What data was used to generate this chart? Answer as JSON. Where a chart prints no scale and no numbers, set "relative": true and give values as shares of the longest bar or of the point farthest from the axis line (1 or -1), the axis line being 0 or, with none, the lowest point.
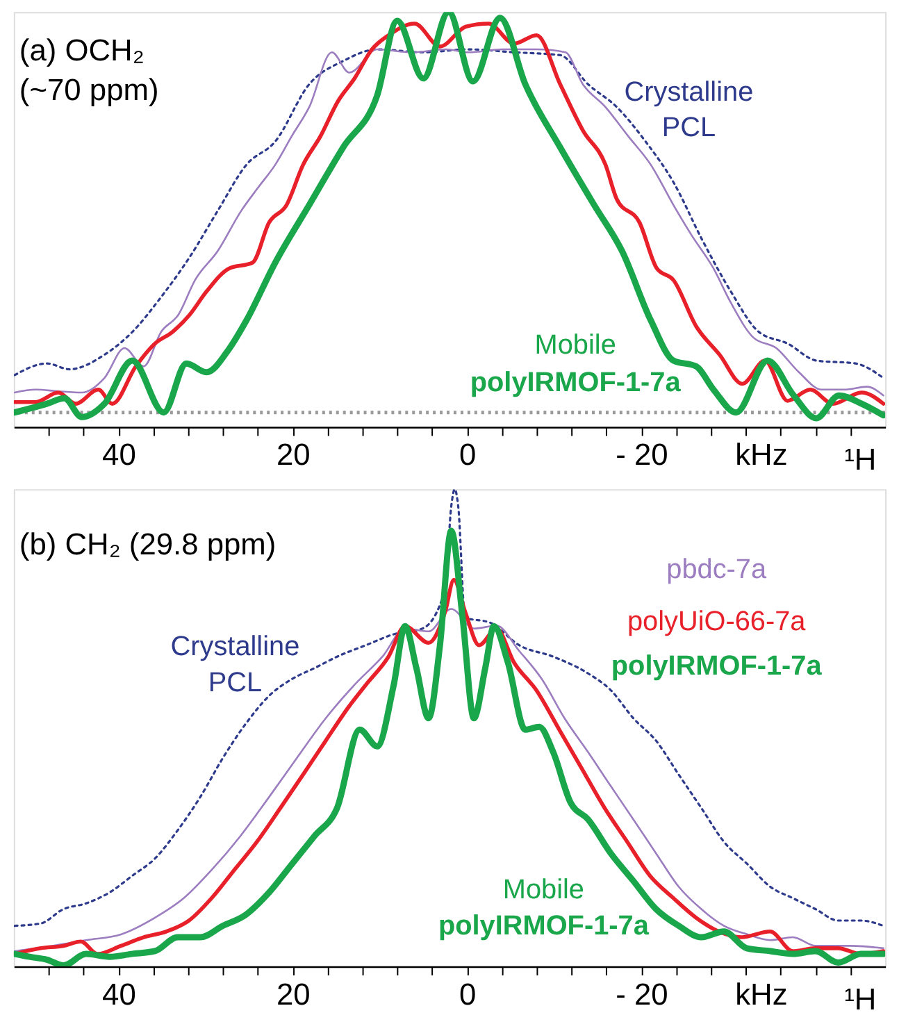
{
  "chart_data": [
    {
      "type": "line",
      "title": "(a)  OCH₂ (~70 ppm)",
      "xlabel": "kHz",
      "relative": true,
      "xlim": [
        52,
        -48
      ],
      "xticks": [
        {
          "value": 48,
          "label": null
        },
        {
          "value": 44,
          "label": null
        },
        40,
        {
          "value": 36,
          "label": null
        },
        {
          "value": 32,
          "label": null
        },
        {
          "value": 28,
          "label": null
        },
        {
          "value": 24,
          "label": null
        },
        20,
        {
          "value": 16,
          "label": null
        },
        {
          "value": 12,
          "label": null
        },
        {
          "value": 8,
          "label": null
        },
        {
          "value": 4,
          "label": null
        },
        0,
        {
          "value": -4,
          "label": null
        },
        {
          "value": -8,
          "label": null
        },
        {
          "value": -12,
          "label": null
        },
        {
          "value": -16,
          "label": null
        },
        {
          "value": -20,
          "label": "- 20"
        },
        {
          "value": -24,
          "label": null
        },
        {
          "value": -28,
          "label": null
        },
        {
          "value": -32,
          "label": null
        },
        {
          "value": -36,
          "label": null
        },
        {
          "value": -40,
          "label": null
        },
        {
          "value": -44,
          "label": null
        }
      ],
      "annotations": [
        "Mobile",
        "¹H"
      ],
      "ref_lines": [
        {
          "axis": "y",
          "value": 0.035,
          "color": "#999999",
          "line_style": "dotted"
        }
      ],
      "series": [
        {
          "name": "Crystalline PCL",
          "color": "#2e3a8c",
          "line_style": "dotted",
          "x": [
            51.9,
            48.2,
            45.6,
            41.6,
            38.4,
            35.1,
            31.8,
            28.6,
            25.3,
            22.0,
            18.1,
            14.2,
            10.3,
            5.0,
            -0.2,
            -5.4,
            -10.7,
            -13.9,
            -17.2,
            -20.5,
            -23.7,
            -27.0,
            -30.3,
            -33.5,
            -36.8,
            -40.1,
            -44.6,
            -47.8
          ],
          "values": [
            0.125,
            0.153,
            0.139,
            0.174,
            0.229,
            0.313,
            0.41,
            0.521,
            0.632,
            0.688,
            0.826,
            0.882,
            0.91,
            0.903,
            0.91,
            0.903,
            0.896,
            0.826,
            0.771,
            0.688,
            0.59,
            0.451,
            0.326,
            0.229,
            0.201,
            0.16,
            0.153,
            0.118
          ]
        },
        {
          "color": "#9b7dc0",
          "x": [
            51.9,
            49.5,
            46.9,
            44.2,
            41.6,
            39.3,
            37.1,
            35.1,
            33.1,
            31.2,
            28.6,
            25.9,
            24.0,
            22.0,
            20.1,
            18.1,
            15.5,
            13.5,
            10.3,
            6.3,
            2.4,
            -0.2,
            -4.1,
            -8.0,
            -11.3,
            -13.3,
            -15.9,
            -18.5,
            -21.1,
            -23.7,
            -25.7,
            -28.3,
            -30.3,
            -32.9,
            -35.5,
            -38.1,
            -40.7,
            -43.3,
            -45.9,
            -47.8
          ],
          "values": [
            0.083,
            0.09,
            0.086,
            0.083,
            0.118,
            0.19,
            0.146,
            0.229,
            0.271,
            0.354,
            0.424,
            0.521,
            0.576,
            0.632,
            0.701,
            0.771,
            0.903,
            0.854,
            0.91,
            0.903,
            0.91,
            0.903,
            0.91,
            0.91,
            0.903,
            0.826,
            0.771,
            0.701,
            0.632,
            0.535,
            0.465,
            0.382,
            0.299,
            0.215,
            0.19,
            0.132,
            0.09,
            0.09,
            0.097,
            0.076
          ]
        },
        {
          "color": "#e8202a",
          "x": [
            51.9,
            49.5,
            46.9,
            44.9,
            42.3,
            40.7,
            38.0,
            35.8,
            33.8,
            31.8,
            29.9,
            27.3,
            24.6,
            22.7,
            20.7,
            18.8,
            16.8,
            14.8,
            12.9,
            10.9,
            9.0,
            6.0,
            3.1,
            0.1,
            -2.5,
            -5.4,
            -8.0,
            -10.7,
            -13.3,
            -15.9,
            -17.2,
            -19.8,
            -21.8,
            -23.7,
            -26.3,
            -29.0,
            -31.6,
            -34.2,
            -36.8,
            -39.4,
            -42.0,
            -45.3,
            -47.8
          ],
          "values": [
            0.06,
            0.06,
            0.083,
            0.056,
            0.09,
            0.056,
            0.146,
            0.201,
            0.229,
            0.271,
            0.326,
            0.382,
            0.396,
            0.493,
            0.535,
            0.632,
            0.701,
            0.785,
            0.84,
            0.91,
            0.944,
            0.972,
            0.917,
            0.965,
            0.972,
            0.924,
            0.944,
            0.826,
            0.715,
            0.632,
            0.549,
            0.493,
            0.382,
            0.354,
            0.243,
            0.174,
            0.104,
            0.16,
            0.063,
            0.09,
            0.056,
            0.083,
            0.056
          ]
        },
        {
          "name": "polyIRMOF-1-7a",
          "color": "#1aa64a",
          "x": [
            51.9,
            48.2,
            46.2,
            44.2,
            41.6,
            38.4,
            34.8,
            32.2,
            29.9,
            27.3,
            25.3,
            22.0,
            18.1,
            14.2,
            10.3,
            8.0,
            5.0,
            2.1,
            -0.7,
            -3.8,
            -6.7,
            -10.7,
            -14.6,
            -17.8,
            -21.1,
            -23.7,
            -26.3,
            -28.3,
            -30.9,
            -34.5,
            -37.5,
            -40.1,
            -42.7,
            -45.3,
            -47.8
          ],
          "values": [
            0.035,
            0.056,
            0.069,
            0.024,
            0.056,
            0.16,
            0.035,
            0.153,
            0.132,
            0.188,
            0.257,
            0.396,
            0.535,
            0.674,
            0.799,
            0.979,
            0.84,
            1.0,
            0.833,
            0.986,
            0.826,
            0.674,
            0.535,
            0.424,
            0.257,
            0.16,
            0.146,
            0.09,
            0.035,
            0.16,
            0.076,
            0.021,
            0.076,
            0.056,
            0.028
          ]
        }
      ]
    },
    {
      "type": "line",
      "title": "(b)  CH₂ (29.8 ppm)",
      "xlabel": "kHz",
      "relative": true,
      "xlim": [
        52,
        -48
      ],
      "xticks": [
        {
          "value": 48,
          "label": null
        },
        {
          "value": 44,
          "label": null
        },
        40,
        {
          "value": 36,
          "label": null
        },
        {
          "value": 32,
          "label": null
        },
        {
          "value": 28,
          "label": null
        },
        {
          "value": 24,
          "label": null
        },
        20,
        {
          "value": 16,
          "label": null
        },
        {
          "value": 12,
          "label": null
        },
        {
          "value": 8,
          "label": null
        },
        {
          "value": 4,
          "label": null
        },
        0,
        {
          "value": -4,
          "label": null
        },
        {
          "value": -8,
          "label": null
        },
        {
          "value": -12,
          "label": null
        },
        {
          "value": -16,
          "label": null
        },
        {
          "value": -20,
          "label": "- 20"
        },
        {
          "value": -24,
          "label": null
        },
        {
          "value": -28,
          "label": null
        },
        {
          "value": -32,
          "label": null
        },
        {
          "value": -36,
          "label": null
        },
        {
          "value": -40,
          "label": null
        },
        {
          "value": -44,
          "label": null
        }
      ],
      "annotations": [
        "Mobile",
        "polyIRMOF-1-7a",
        "¹H"
      ],
      "series": [
        {
          "name": "Crystalline PCL",
          "color": "#2e3a8c",
          "line_style": "dotted",
          "x": [
            51.9,
            48.9,
            46.3,
            43.7,
            41.0,
            38.4,
            35.8,
            33.2,
            30.6,
            28.0,
            25.4,
            22.7,
            20.1,
            17.5,
            14.9,
            11.6,
            8.4,
            5.1,
            2.5,
            1.8,
            1.4,
            1.0,
            0.2,
            -2.7,
            -6.0,
            -9.9,
            -13.9,
            -16.5,
            -19.1,
            -21.7,
            -24.3,
            -26.9,
            -29.5,
            -32.2,
            -34.8,
            -37.4,
            -40.0,
            -42.6,
            -45.2,
            -47.8
          ],
          "values": [
            0.085,
            0.09,
            0.12,
            0.132,
            0.155,
            0.19,
            0.226,
            0.285,
            0.355,
            0.437,
            0.508,
            0.567,
            0.602,
            0.625,
            0.649,
            0.673,
            0.696,
            0.708,
            0.79,
            0.964,
            1.0,
            0.964,
            0.731,
            0.72,
            0.673,
            0.649,
            0.614,
            0.579,
            0.52,
            0.473,
            0.402,
            0.332,
            0.261,
            0.214,
            0.167,
            0.143,
            0.12,
            0.096,
            0.096,
            0.085
          ]
        },
        {
          "name": "pbdc-7a",
          "color": "#9b7dc0",
          "x": [
            51.9,
            47.6,
            43.7,
            39.7,
            35.8,
            32.5,
            29.3,
            26.0,
            22.7,
            19.5,
            16.2,
            12.9,
            9.7,
            7.1,
            4.4,
            1.8,
            -0.8,
            -3.4,
            -6.0,
            -8.6,
            -11.2,
            -13.9,
            -16.5,
            -19.1,
            -21.7,
            -24.3,
            -26.9,
            -29.5,
            -32.2,
            -34.8,
            -37.4,
            -40.0,
            -43.9,
            -47.8
          ],
          "values": [
            0.032,
            0.043,
            0.055,
            0.067,
            0.102,
            0.143,
            0.202,
            0.273,
            0.355,
            0.437,
            0.52,
            0.59,
            0.649,
            0.708,
            0.702,
            0.749,
            0.708,
            0.714,
            0.661,
            0.602,
            0.52,
            0.449,
            0.378,
            0.308,
            0.237,
            0.167,
            0.12,
            0.085,
            0.067,
            0.055,
            0.061,
            0.043,
            0.043,
            0.038
          ]
        },
        {
          "name": "polyUiO-66-7a",
          "color": "#e8202a",
          "x": [
            51.9,
            48.9,
            46.3,
            44.3,
            42.4,
            39.7,
            37.1,
            34.5,
            31.9,
            29.3,
            26.7,
            24.1,
            21.4,
            18.8,
            16.2,
            13.6,
            11.6,
            9.0,
            7.1,
            4.4,
            2.5,
            1.5,
            0.2,
            -1.4,
            -3.4,
            -5.4,
            -8.0,
            -10.6,
            -13.2,
            -15.8,
            -18.4,
            -21.0,
            -23.7,
            -26.3,
            -28.9,
            -31.5,
            -34.8,
            -37.4,
            -40.0,
            -42.6,
            -45.2,
            -47.8
          ],
          "values": [
            0.026,
            0.038,
            0.043,
            0.052,
            0.026,
            0.043,
            0.061,
            0.073,
            0.096,
            0.143,
            0.202,
            0.261,
            0.332,
            0.402,
            0.473,
            0.543,
            0.59,
            0.649,
            0.713,
            0.678,
            0.743,
            0.81,
            0.743,
            0.673,
            0.708,
            0.637,
            0.578,
            0.496,
            0.414,
            0.332,
            0.261,
            0.19,
            0.143,
            0.102,
            0.073,
            0.061,
            0.073,
            0.032,
            0.038,
            0.038,
            0.026,
            0.032
          ]
        },
        {
          "name": "polyIRMOF-1-7a",
          "color": "#1aa64a",
          "x": [
            51.9,
            50.2,
            48.2,
            46.3,
            43.7,
            41.0,
            38.5,
            35.8,
            33.2,
            30.6,
            28.0,
            25.4,
            22.7,
            20.1,
            17.5,
            14.9,
            12.3,
            10.3,
            8.4,
            7.1,
            5.8,
            4.4,
            3.1,
            1.8,
            0.5,
            -0.8,
            -2.1,
            -3.1,
            -4.7,
            -6.7,
            -8.3,
            -9.9,
            -11.9,
            -13.9,
            -16.5,
            -19.1,
            -21.7,
            -24.3,
            -26.9,
            -29.5,
            -32.1,
            -34.8,
            -37.4,
            -40.0,
            -42.6,
            -45.2,
            -47.8
          ],
          "values": [
            0.026,
            0.02,
            0.014,
            0.002,
            0.026,
            0.02,
            0.026,
            0.032,
            0.061,
            0.061,
            0.085,
            0.108,
            0.155,
            0.214,
            0.273,
            0.332,
            0.496,
            0.461,
            0.59,
            0.713,
            0.625,
            0.52,
            0.672,
            0.913,
            0.731,
            0.52,
            0.625,
            0.713,
            0.637,
            0.496,
            0.502,
            0.449,
            0.343,
            0.308,
            0.237,
            0.179,
            0.12,
            0.085,
            0.061,
            0.073,
            0.038,
            0.032,
            0.026,
            0.032,
            0.008,
            0.026,
            0.026
          ]
        }
      ]
    }
  ]
}
